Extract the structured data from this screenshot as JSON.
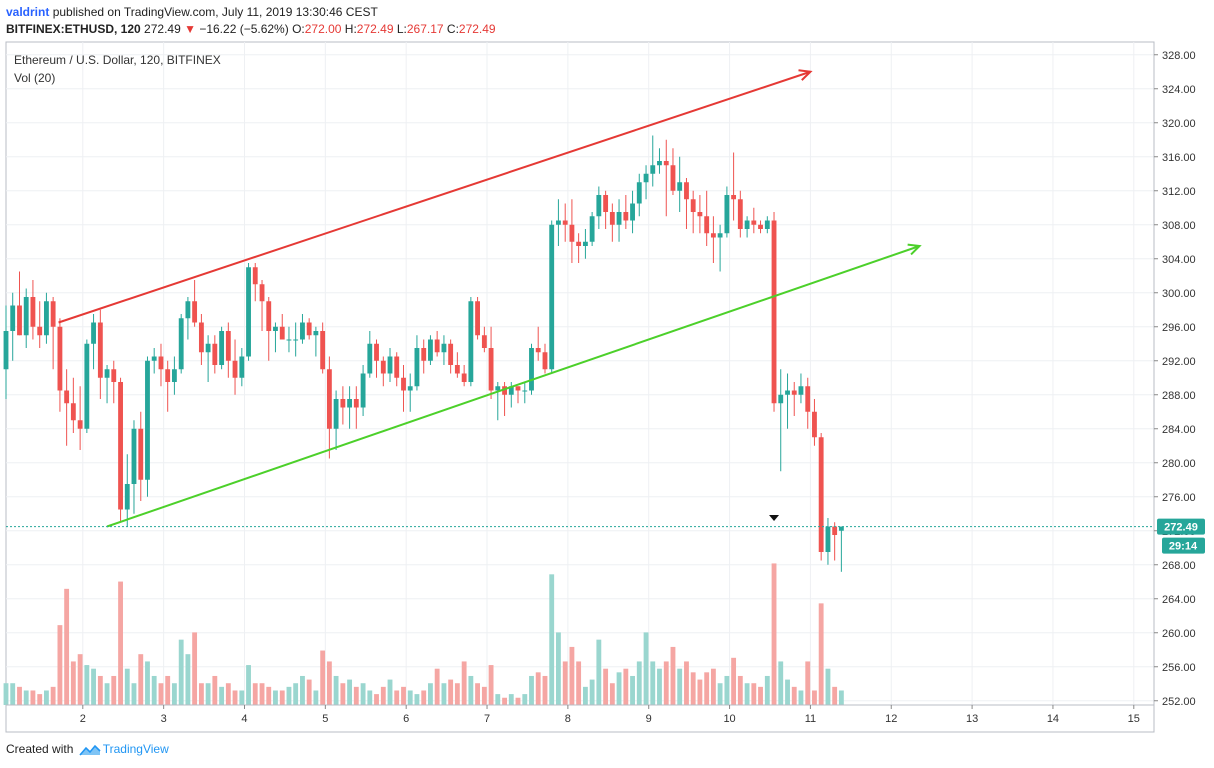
{
  "header": {
    "user": "valdrint",
    "published_text": "published on TradingView.com, July 11, 2019 13:30:46 CEST",
    "symbol": "BITFINEX:ETHUSD, 120",
    "last": "272.49",
    "change": "−16.22 (−5.62%)",
    "o_label": "O:",
    "o_value": "272.00",
    "h_label": "H:",
    "h_value": "272.49",
    "l_label": "L:",
    "l_value": "267.17",
    "c_label": "C:",
    "c_value": "272.49"
  },
  "legend": {
    "title": "Ethereum / U.S. Dollar, 120, BITFINEX",
    "volume": "Vol (20)"
  },
  "price_badge": "272.49",
  "countdown_badge": "29:14",
  "footer": {
    "created_with": "Created with",
    "brand": "TradingView"
  },
  "colors": {
    "up": "#26a69a",
    "down": "#ef5350",
    "up_volume": "#9ad6cf",
    "down_volume": "#f5a6a3",
    "upper_trendline": "#e53935",
    "lower_trendline": "#4cd02a",
    "grid": "#eef0f3",
    "price_line": "#26a69a"
  },
  "chart_data": {
    "type": "candlestick",
    "title": "Ethereum / U.S. Dollar, 120, BITFINEX",
    "x_ticks": [
      "2",
      "3",
      "4",
      "5",
      "6",
      "7",
      "8",
      "9",
      "10",
      "11",
      "12",
      "13",
      "14",
      "15"
    ],
    "y_ticks": [
      "252.00",
      "256.00",
      "260.00",
      "264.00",
      "268.00",
      "272.00",
      "276.00",
      "280.00",
      "284.00",
      "288.00",
      "292.00",
      "296.00",
      "300.00",
      "304.00",
      "308.00",
      "312.00",
      "316.00",
      "320.00",
      "324.00",
      "328.00"
    ],
    "ylim": [
      251.5,
      329.5
    ],
    "xlim": [
      1.05,
      15.25
    ],
    "bar_width_days": 0.0833,
    "volume_scale": {
      "max_volume": 24,
      "panel_bottom_price": 251.5,
      "panel_height_price": 20.5
    },
    "current_price": 272.49,
    "bars": [
      {
        "t": 1.05,
        "o": 291.0,
        "h": 298.5,
        "l": 287.5,
        "c": 295.5,
        "v": 3.0
      },
      {
        "t": 1.133,
        "o": 295.5,
        "h": 300.0,
        "l": 292.0,
        "c": 298.5,
        "v": 3.0
      },
      {
        "t": 1.217,
        "o": 298.5,
        "h": 302.5,
        "l": 295.0,
        "c": 295.0,
        "v": 2.5
      },
      {
        "t": 1.3,
        "o": 295.0,
        "h": 300.5,
        "l": 293.5,
        "c": 299.5,
        "v": 2.0
      },
      {
        "t": 1.383,
        "o": 299.5,
        "h": 301.5,
        "l": 294.5,
        "c": 296.0,
        "v": 2.0
      },
      {
        "t": 1.467,
        "o": 296.0,
        "h": 299.0,
        "l": 293.5,
        "c": 295.0,
        "v": 1.5
      },
      {
        "t": 1.55,
        "o": 295.0,
        "h": 300.0,
        "l": 294.0,
        "c": 299.0,
        "v": 2.0
      },
      {
        "t": 1.633,
        "o": 299.0,
        "h": 299.5,
        "l": 291.0,
        "c": 296.0,
        "v": 2.5
      },
      {
        "t": 1.717,
        "o": 296.0,
        "h": 297.0,
        "l": 286.0,
        "c": 288.5,
        "v": 11.0
      },
      {
        "t": 1.8,
        "o": 288.5,
        "h": 291.0,
        "l": 282.0,
        "c": 287.0,
        "v": 16.0
      },
      {
        "t": 1.883,
        "o": 287.0,
        "h": 290.0,
        "l": 283.5,
        "c": 285.0,
        "v": 6.0
      },
      {
        "t": 1.967,
        "o": 285.0,
        "h": 289.0,
        "l": 281.5,
        "c": 284.0,
        "v": 7.0
      },
      {
        "t": 2.05,
        "o": 284.0,
        "h": 294.5,
        "l": 283.5,
        "c": 294.0,
        "v": 5.5
      },
      {
        "t": 2.133,
        "o": 294.0,
        "h": 297.5,
        "l": 291.0,
        "c": 296.5,
        "v": 5.0
      },
      {
        "t": 2.217,
        "o": 296.5,
        "h": 298.0,
        "l": 287.5,
        "c": 290.0,
        "v": 4.0
      },
      {
        "t": 2.3,
        "o": 290.0,
        "h": 291.5,
        "l": 287.0,
        "c": 291.0,
        "v": 3.0
      },
      {
        "t": 2.383,
        "o": 291.0,
        "h": 292.0,
        "l": 287.0,
        "c": 289.5,
        "v": 4.0
      },
      {
        "t": 2.467,
        "o": 289.5,
        "h": 290.0,
        "l": 273.0,
        "c": 274.5,
        "v": 17.0
      },
      {
        "t": 2.55,
        "o": 274.5,
        "h": 281.0,
        "l": 272.5,
        "c": 277.5,
        "v": 5.0
      },
      {
        "t": 2.633,
        "o": 277.5,
        "h": 285.0,
        "l": 274.0,
        "c": 284.0,
        "v": 3.0
      },
      {
        "t": 2.717,
        "o": 284.0,
        "h": 286.0,
        "l": 275.5,
        "c": 278.0,
        "v": 7.0
      },
      {
        "t": 2.8,
        "o": 278.0,
        "h": 292.5,
        "l": 276.0,
        "c": 292.0,
        "v": 6.0
      },
      {
        "t": 2.883,
        "o": 292.0,
        "h": 293.5,
        "l": 290.5,
        "c": 292.5,
        "v": 4.0
      },
      {
        "t": 2.967,
        "o": 292.5,
        "h": 294.0,
        "l": 289.0,
        "c": 291.0,
        "v": 3.0
      },
      {
        "t": 3.05,
        "o": 291.0,
        "h": 292.0,
        "l": 286.0,
        "c": 289.5,
        "v": 4.0
      },
      {
        "t": 3.133,
        "o": 289.5,
        "h": 292.5,
        "l": 288.0,
        "c": 291.0,
        "v": 3.0
      },
      {
        "t": 3.217,
        "o": 291.0,
        "h": 297.5,
        "l": 290.5,
        "c": 297.0,
        "v": 9.0
      },
      {
        "t": 3.3,
        "o": 297.0,
        "h": 299.5,
        "l": 294.5,
        "c": 299.0,
        "v": 7.0
      },
      {
        "t": 3.383,
        "o": 299.0,
        "h": 301.5,
        "l": 296.0,
        "c": 296.5,
        "v": 10.0
      },
      {
        "t": 3.467,
        "o": 296.5,
        "h": 297.5,
        "l": 291.5,
        "c": 293.0,
        "v": 3.0
      },
      {
        "t": 3.55,
        "o": 293.0,
        "h": 295.0,
        "l": 289.5,
        "c": 294.0,
        "v": 3.0
      },
      {
        "t": 3.633,
        "o": 294.0,
        "h": 295.0,
        "l": 290.5,
        "c": 291.5,
        "v": 4.0
      },
      {
        "t": 3.717,
        "o": 291.5,
        "h": 296.0,
        "l": 291.0,
        "c": 295.5,
        "v": 2.5
      },
      {
        "t": 3.8,
        "o": 295.5,
        "h": 296.5,
        "l": 290.0,
        "c": 292.0,
        "v": 3.0
      },
      {
        "t": 3.883,
        "o": 292.0,
        "h": 294.5,
        "l": 288.0,
        "c": 290.0,
        "v": 2.0
      },
      {
        "t": 3.967,
        "o": 290.0,
        "h": 293.5,
        "l": 289.0,
        "c": 292.5,
        "v": 2.0
      },
      {
        "t": 4.05,
        "o": 292.5,
        "h": 303.5,
        "l": 292.0,
        "c": 303.0,
        "v": 5.5
      },
      {
        "t": 4.133,
        "o": 303.0,
        "h": 303.5,
        "l": 299.0,
        "c": 301.0,
        "v": 3.0
      },
      {
        "t": 4.217,
        "o": 301.0,
        "h": 301.5,
        "l": 295.5,
        "c": 299.0,
        "v": 3.0
      },
      {
        "t": 4.3,
        "o": 299.0,
        "h": 299.5,
        "l": 292.0,
        "c": 295.5,
        "v": 2.5
      },
      {
        "t": 4.383,
        "o": 295.5,
        "h": 296.5,
        "l": 293.0,
        "c": 296.0,
        "v": 2.0
      },
      {
        "t": 4.467,
        "o": 296.0,
        "h": 297.5,
        "l": 294.5,
        "c": 294.5,
        "v": 2.0
      },
      {
        "t": 4.55,
        "o": 294.5,
        "h": 296.0,
        "l": 293.0,
        "c": 294.5,
        "v": 2.5
      },
      {
        "t": 4.633,
        "o": 294.5,
        "h": 296.5,
        "l": 292.5,
        "c": 294.5,
        "v": 3.0
      },
      {
        "t": 4.717,
        "o": 294.5,
        "h": 297.5,
        "l": 294.0,
        "c": 296.5,
        "v": 4.0
      },
      {
        "t": 4.8,
        "o": 296.5,
        "h": 297.0,
        "l": 294.5,
        "c": 295.0,
        "v": 3.5
      },
      {
        "t": 4.883,
        "o": 295.0,
        "h": 296.0,
        "l": 292.5,
        "c": 295.5,
        "v": 2.0
      },
      {
        "t": 4.967,
        "o": 295.5,
        "h": 296.5,
        "l": 290.5,
        "c": 291.0,
        "v": 7.5
      },
      {
        "t": 5.05,
        "o": 291.0,
        "h": 292.5,
        "l": 280.5,
        "c": 284.0,
        "v": 6.0
      },
      {
        "t": 5.133,
        "o": 284.0,
        "h": 288.5,
        "l": 281.5,
        "c": 287.5,
        "v": 4.0
      },
      {
        "t": 5.217,
        "o": 287.5,
        "h": 289.0,
        "l": 284.5,
        "c": 286.5,
        "v": 3.0
      },
      {
        "t": 5.3,
        "o": 286.5,
        "h": 289.0,
        "l": 284.0,
        "c": 287.5,
        "v": 3.5
      },
      {
        "t": 5.383,
        "o": 287.5,
        "h": 289.0,
        "l": 284.0,
        "c": 286.5,
        "v": 2.5
      },
      {
        "t": 5.467,
        "o": 286.5,
        "h": 291.5,
        "l": 285.5,
        "c": 290.5,
        "v": 3.0
      },
      {
        "t": 5.55,
        "o": 290.5,
        "h": 295.5,
        "l": 290.0,
        "c": 294.0,
        "v": 2.0
      },
      {
        "t": 5.633,
        "o": 294.0,
        "h": 294.5,
        "l": 290.0,
        "c": 292.0,
        "v": 1.5
      },
      {
        "t": 5.717,
        "o": 292.0,
        "h": 292.5,
        "l": 289.0,
        "c": 290.5,
        "v": 2.5
      },
      {
        "t": 5.8,
        "o": 290.5,
        "h": 293.5,
        "l": 289.5,
        "c": 292.5,
        "v": 3.5
      },
      {
        "t": 5.883,
        "o": 292.5,
        "h": 293.0,
        "l": 289.0,
        "c": 290.0,
        "v": 2.0
      },
      {
        "t": 5.967,
        "o": 290.0,
        "h": 291.5,
        "l": 286.0,
        "c": 288.5,
        "v": 2.5
      },
      {
        "t": 6.05,
        "o": 288.5,
        "h": 290.5,
        "l": 286.0,
        "c": 289.0,
        "v": 2.0
      },
      {
        "t": 6.133,
        "o": 289.0,
        "h": 295.0,
        "l": 288.5,
        "c": 293.5,
        "v": 1.5
      },
      {
        "t": 6.217,
        "o": 293.5,
        "h": 294.5,
        "l": 290.5,
        "c": 292.0,
        "v": 2.0
      },
      {
        "t": 6.3,
        "o": 292.0,
        "h": 295.0,
        "l": 291.5,
        "c": 294.5,
        "v": 3.0
      },
      {
        "t": 6.383,
        "o": 294.5,
        "h": 295.5,
        "l": 292.5,
        "c": 293.0,
        "v": 5.0
      },
      {
        "t": 6.467,
        "o": 293.0,
        "h": 295.0,
        "l": 291.5,
        "c": 294.0,
        "v": 3.0
      },
      {
        "t": 6.55,
        "o": 294.0,
        "h": 294.5,
        "l": 290.5,
        "c": 291.5,
        "v": 3.5
      },
      {
        "t": 6.633,
        "o": 291.5,
        "h": 293.0,
        "l": 290.0,
        "c": 290.5,
        "v": 3.0
      },
      {
        "t": 6.717,
        "o": 290.5,
        "h": 291.5,
        "l": 289.0,
        "c": 289.5,
        "v": 6.0
      },
      {
        "t": 6.8,
        "o": 289.5,
        "h": 299.5,
        "l": 289.0,
        "c": 299.0,
        "v": 4.0
      },
      {
        "t": 6.883,
        "o": 299.0,
        "h": 299.5,
        "l": 294.5,
        "c": 295.0,
        "v": 3.0
      },
      {
        "t": 6.967,
        "o": 295.0,
        "h": 296.0,
        "l": 293.0,
        "c": 293.5,
        "v": 2.5
      },
      {
        "t": 7.05,
        "o": 293.5,
        "h": 296.0,
        "l": 287.5,
        "c": 288.5,
        "v": 5.5
      },
      {
        "t": 7.133,
        "o": 288.5,
        "h": 289.5,
        "l": 285.0,
        "c": 289.0,
        "v": 1.5
      },
      {
        "t": 7.217,
        "o": 289.0,
        "h": 289.5,
        "l": 285.5,
        "c": 288.0,
        "v": 1.0
      },
      {
        "t": 7.3,
        "o": 288.0,
        "h": 289.5,
        "l": 286.5,
        "c": 289.0,
        "v": 1.5
      },
      {
        "t": 7.383,
        "o": 289.0,
        "h": 289.0,
        "l": 287.0,
        "c": 288.5,
        "v": 1.0
      },
      {
        "t": 7.467,
        "o": 288.5,
        "h": 289.5,
        "l": 287.0,
        "c": 288.5,
        "v": 1.5
      },
      {
        "t": 7.55,
        "o": 288.5,
        "h": 294.0,
        "l": 288.0,
        "c": 293.5,
        "v": 4.0
      },
      {
        "t": 7.633,
        "o": 293.5,
        "h": 296.0,
        "l": 292.0,
        "c": 293.0,
        "v": 4.5
      },
      {
        "t": 7.717,
        "o": 293.0,
        "h": 294.0,
        "l": 290.5,
        "c": 291.0,
        "v": 4.0
      },
      {
        "t": 7.8,
        "o": 291.0,
        "h": 308.5,
        "l": 290.5,
        "c": 308.0,
        "v": 18.0
      },
      {
        "t": 7.883,
        "o": 308.0,
        "h": 311.0,
        "l": 305.5,
        "c": 308.5,
        "v": 10.0
      },
      {
        "t": 7.967,
        "o": 308.5,
        "h": 310.5,
        "l": 306.0,
        "c": 308.0,
        "v": 6.0
      },
      {
        "t": 8.05,
        "o": 308.0,
        "h": 311.0,
        "l": 303.5,
        "c": 306.0,
        "v": 8.0
      },
      {
        "t": 8.133,
        "o": 306.0,
        "h": 307.0,
        "l": 303.5,
        "c": 305.5,
        "v": 6.0
      },
      {
        "t": 8.217,
        "o": 305.5,
        "h": 307.5,
        "l": 304.0,
        "c": 306.0,
        "v": 2.5
      },
      {
        "t": 8.3,
        "o": 306.0,
        "h": 309.5,
        "l": 305.5,
        "c": 309.0,
        "v": 3.5
      },
      {
        "t": 8.383,
        "o": 309.0,
        "h": 312.5,
        "l": 307.5,
        "c": 311.5,
        "v": 9.0
      },
      {
        "t": 8.467,
        "o": 311.5,
        "h": 312.0,
        "l": 307.5,
        "c": 309.5,
        "v": 5.0
      },
      {
        "t": 8.55,
        "o": 309.5,
        "h": 310.5,
        "l": 306.0,
        "c": 308.0,
        "v": 3.0
      },
      {
        "t": 8.633,
        "o": 308.0,
        "h": 311.0,
        "l": 306.0,
        "c": 309.5,
        "v": 4.5
      },
      {
        "t": 8.717,
        "o": 309.5,
        "h": 311.5,
        "l": 307.5,
        "c": 308.5,
        "v": 5.0
      },
      {
        "t": 8.8,
        "o": 308.5,
        "h": 312.0,
        "l": 307.0,
        "c": 310.5,
        "v": 4.0
      },
      {
        "t": 8.883,
        "o": 310.5,
        "h": 314.0,
        "l": 309.0,
        "c": 313.0,
        "v": 6.0
      },
      {
        "t": 8.967,
        "o": 313.0,
        "h": 315.0,
        "l": 311.0,
        "c": 314.0,
        "v": 10.0
      },
      {
        "t": 9.05,
        "o": 314.0,
        "h": 318.5,
        "l": 312.5,
        "c": 315.0,
        "v": 6.0
      },
      {
        "t": 9.133,
        "o": 315.0,
        "h": 317.0,
        "l": 314.0,
        "c": 315.5,
        "v": 5.0
      },
      {
        "t": 9.217,
        "o": 315.5,
        "h": 318.0,
        "l": 309.0,
        "c": 315.0,
        "v": 6.0
      },
      {
        "t": 9.3,
        "o": 315.0,
        "h": 317.0,
        "l": 311.5,
        "c": 312.0,
        "v": 8.0
      },
      {
        "t": 9.383,
        "o": 312.0,
        "h": 316.0,
        "l": 309.5,
        "c": 313.0,
        "v": 5.0
      },
      {
        "t": 9.467,
        "o": 313.0,
        "h": 313.5,
        "l": 307.5,
        "c": 311.0,
        "v": 6.0
      },
      {
        "t": 9.55,
        "o": 311.0,
        "h": 312.0,
        "l": 307.0,
        "c": 309.5,
        "v": 4.5
      },
      {
        "t": 9.633,
        "o": 309.5,
        "h": 311.5,
        "l": 307.0,
        "c": 309.0,
        "v": 3.5
      },
      {
        "t": 9.717,
        "o": 309.0,
        "h": 312.0,
        "l": 305.5,
        "c": 307.0,
        "v": 4.5
      },
      {
        "t": 9.8,
        "o": 307.0,
        "h": 309.0,
        "l": 303.5,
        "c": 306.5,
        "v": 5.0
      },
      {
        "t": 9.883,
        "o": 306.5,
        "h": 308.0,
        "l": 302.5,
        "c": 307.0,
        "v": 3.0
      },
      {
        "t": 9.967,
        "o": 307.0,
        "h": 312.5,
        "l": 306.5,
        "c": 311.5,
        "v": 4.0
      },
      {
        "t": 10.05,
        "o": 311.5,
        "h": 316.5,
        "l": 308.5,
        "c": 311.0,
        "v": 6.5
      },
      {
        "t": 10.133,
        "o": 311.0,
        "h": 312.0,
        "l": 306.5,
        "c": 307.5,
        "v": 4.0
      },
      {
        "t": 10.217,
        "o": 307.5,
        "h": 309.0,
        "l": 306.5,
        "c": 308.5,
        "v": 3.0
      },
      {
        "t": 10.3,
        "o": 308.5,
        "h": 310.0,
        "l": 307.0,
        "c": 308.0,
        "v": 3.0
      },
      {
        "t": 10.383,
        "o": 308.0,
        "h": 308.5,
        "l": 307.0,
        "c": 307.5,
        "v": 2.5
      },
      {
        "t": 10.467,
        "o": 307.5,
        "h": 309.0,
        "l": 307.0,
        "c": 308.5,
        "v": 4.0
      },
      {
        "t": 10.55,
        "o": 308.5,
        "h": 309.5,
        "l": 286.0,
        "c": 287.0,
        "v": 19.5
      },
      {
        "t": 10.633,
        "o": 287.0,
        "h": 291.0,
        "l": 279.0,
        "c": 288.0,
        "v": 6.0
      },
      {
        "t": 10.717,
        "o": 288.0,
        "h": 290.5,
        "l": 284.0,
        "c": 288.5,
        "v": 3.5
      },
      {
        "t": 10.8,
        "o": 288.5,
        "h": 289.5,
        "l": 285.5,
        "c": 288.0,
        "v": 2.5
      },
      {
        "t": 10.883,
        "o": 288.0,
        "h": 290.5,
        "l": 287.0,
        "c": 289.0,
        "v": 2.0
      },
      {
        "t": 10.967,
        "o": 289.0,
        "h": 290.0,
        "l": 284.0,
        "c": 286.0,
        "v": 6.0
      },
      {
        "t": 11.05,
        "o": 286.0,
        "h": 287.5,
        "l": 282.0,
        "c": 283.0,
        "v": 2.0
      },
      {
        "t": 11.133,
        "o": 283.0,
        "h": 283.5,
        "l": 268.5,
        "c": 269.5,
        "v": 14.0
      },
      {
        "t": 11.217,
        "o": 269.5,
        "h": 273.5,
        "l": 268.0,
        "c": 272.5,
        "v": 5.0
      },
      {
        "t": 11.3,
        "o": 272.5,
        "h": 273.0,
        "l": 268.5,
        "c": 271.5,
        "v": 2.5
      },
      {
        "t": 11.383,
        "o": 272.0,
        "h": 272.49,
        "l": 267.17,
        "c": 272.49,
        "v": 2.0
      }
    ],
    "trendlines": [
      {
        "name": "",
        "color": "#e53935",
        "from": {
          "t": 1.7,
          "price": 296.5
        },
        "to": {
          "t": 11.0,
          "price": 326.0
        },
        "arrow": true
      },
      {
        "name": "",
        "color": "#4cd02a",
        "from": {
          "t": 2.3,
          "price": 272.5
        },
        "to": {
          "t": 12.35,
          "price": 305.5
        },
        "arrow": true
      }
    ],
    "marker": {
      "t": 10.55,
      "price": 273.5
    }
  }
}
